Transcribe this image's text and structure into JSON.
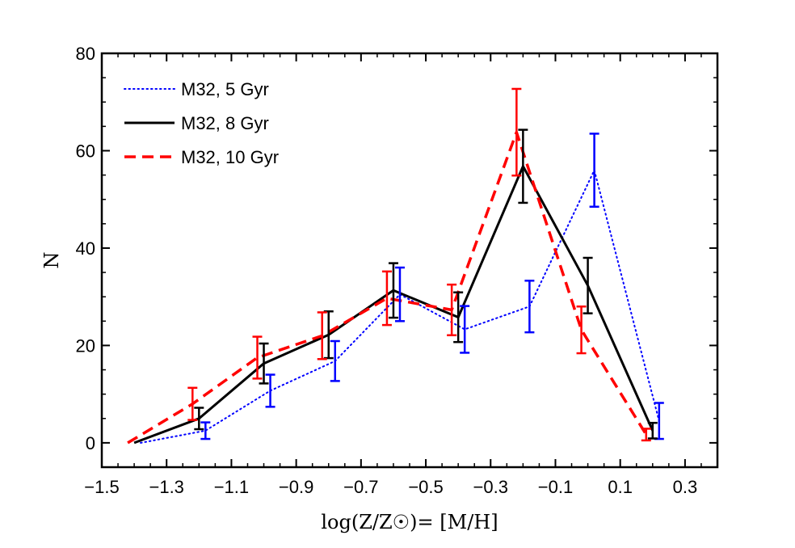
{
  "chart_data": {
    "type": "line",
    "title": "",
    "xlabel": "log(Z/Z☉)= [M/H]",
    "ylabel": "N",
    "xlim": [
      -1.5,
      0.4
    ],
    "ylim": [
      -5,
      80
    ],
    "xticks": [
      -1.5,
      -1.3,
      -1.1,
      -0.9,
      -0.7,
      -0.5,
      -0.3,
      -0.1,
      0.1,
      0.3
    ],
    "xtick_labels": [
      "−1.5",
      "−1.3",
      "−1.1",
      "−0.9",
      "−0.7",
      "−0.5",
      "−0.3",
      "−0.1",
      "0.1",
      "0.3"
    ],
    "yticks": [
      0,
      20,
      40,
      60,
      80
    ],
    "ytick_labels": [
      "0",
      "20",
      "40",
      "60",
      "80"
    ],
    "legend_position": "top-left",
    "series": [
      {
        "name": "M32, 5 Gyr",
        "color": "#0000ff",
        "style": "dotted",
        "x": [
          -1.38,
          -1.18,
          -0.98,
          -0.78,
          -0.58,
          -0.38,
          -0.18,
          0.02,
          0.22
        ],
        "y": [
          0,
          2.5,
          10.7,
          16.8,
          30.5,
          23.3,
          28,
          56,
          4.5
        ],
        "err": [
          null,
          1.7,
          3.3,
          4.1,
          5.5,
          4.8,
          5.3,
          7.5,
          3.7
        ]
      },
      {
        "name": "M32, 8 Gyr",
        "color": "#000000",
        "style": "solid",
        "x": [
          -1.4,
          -1.2,
          -1.0,
          -0.8,
          -0.6,
          -0.4,
          -0.2,
          0.0,
          0.2
        ],
        "y": [
          0,
          5,
          16.3,
          22.2,
          31.3,
          25.8,
          56.8,
          32.3,
          2.5
        ],
        "err": [
          null,
          2.2,
          4.1,
          4.8,
          5.6,
          5.1,
          7.5,
          5.7,
          1.6
        ]
      },
      {
        "name": "M32, 10 Gyr",
        "color": "#ff0000",
        "style": "dashed",
        "x": [
          -1.42,
          -1.22,
          -1.02,
          -0.82,
          -0.62,
          -0.42,
          -0.22,
          -0.02,
          0.18
        ],
        "y": [
          0,
          8,
          17.5,
          22,
          29.7,
          27.3,
          63.8,
          23.2,
          1.7
        ],
        "err": [
          null,
          3.3,
          4.3,
          4.8,
          5.5,
          5.2,
          8.9,
          4.8,
          1.2
        ]
      }
    ]
  }
}
